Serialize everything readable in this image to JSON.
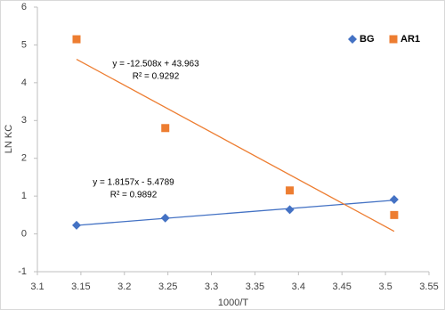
{
  "chart_data": {
    "type": "scatter",
    "x_label": "1000/T",
    "y_label": "LN KC",
    "xlim": [
      3.1,
      3.55
    ],
    "xticks": [
      3.1,
      3.15,
      3.2,
      3.25,
      3.3,
      3.35,
      3.4,
      3.45,
      3.5,
      3.55
    ],
    "ylim": [
      -1,
      6
    ],
    "yticks": [
      -1,
      0,
      1,
      2,
      3,
      4,
      5,
      6
    ],
    "grid": false,
    "legend": "upper right",
    "trendline": "linear",
    "series": [
      {
        "name": "BG",
        "color": "#4472c4",
        "marker": "diamond",
        "x": [
          3.145,
          3.247,
          3.39,
          3.51
        ],
        "values": [
          0.23,
          0.42,
          0.64,
          0.91
        ],
        "equation": "y = 1.8157x - 5.4789",
        "r2": "R² = 0.9892"
      },
      {
        "name": "AR1",
        "color": "#ed7d31",
        "marker": "square",
        "x": [
          3.145,
          3.247,
          3.39,
          3.51
        ],
        "values": [
          5.15,
          2.8,
          1.15,
          0.5
        ],
        "equation": "y = -12.508x + 43.963",
        "r2": "R² = 0.9292"
      }
    ]
  }
}
